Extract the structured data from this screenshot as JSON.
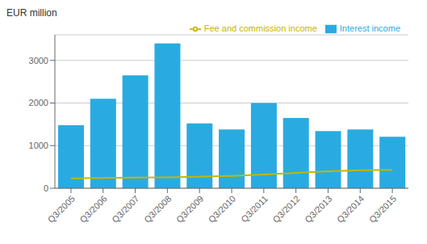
{
  "chart_data": {
    "type": "bar",
    "ylabel": "EUR million",
    "categories": [
      "Q3/2005",
      "Q3/2006",
      "Q3/2007",
      "Q3/2008",
      "Q3/2009",
      "Q3/2010",
      "Q3/2011",
      "Q3/2012",
      "Q3/2013",
      "Q3/2014",
      "Q3/2015"
    ],
    "series": [
      {
        "name": "Interest income",
        "type": "bar",
        "color": "#29abe2",
        "values": [
          1480,
          2100,
          2650,
          3400,
          1520,
          1380,
          2000,
          1650,
          1340,
          1380,
          1210
        ]
      },
      {
        "name": "Fee and commission income",
        "type": "line",
        "color": "#c8b400",
        "values": [
          230,
          240,
          250,
          255,
          270,
          290,
          320,
          360,
          400,
          420,
          430
        ]
      }
    ],
    "ylim": [
      0,
      3600
    ],
    "yticks": [
      0,
      1000,
      2000,
      3000
    ],
    "grid": true,
    "legend": "upper right"
  }
}
